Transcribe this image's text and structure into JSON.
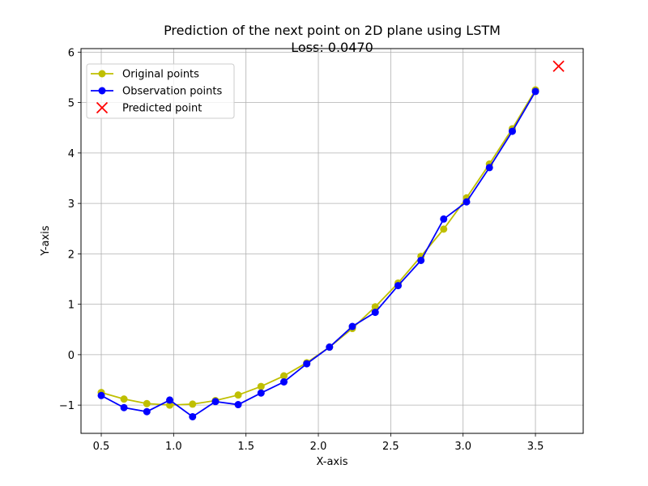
{
  "chart_data": {
    "type": "line",
    "title": "Prediction of the next point on 2D plane using LSTM",
    "subtitle": "Loss: 0.0470",
    "xlabel": "X-axis",
    "ylabel": "Y-axis",
    "xlim": [
      0.36,
      3.83
    ],
    "ylim": [
      -1.56,
      6.07
    ],
    "xticks": [
      0.5,
      1.0,
      1.5,
      2.0,
      2.5,
      3.0,
      3.5
    ],
    "xtick_labels": [
      "0.5",
      "1.0",
      "1.5",
      "2.0",
      "2.5",
      "3.0",
      "3.5"
    ],
    "yticks": [
      -1,
      0,
      1,
      2,
      3,
      4,
      5,
      6
    ],
    "ytick_labels": [
      "−1",
      "0",
      "1",
      "2",
      "3",
      "4",
      "5",
      "6"
    ],
    "grid": true,
    "legend_position": "top-left",
    "x": [
      0.5,
      0.657,
      0.815,
      0.973,
      1.131,
      1.289,
      1.446,
      1.604,
      1.762,
      1.92,
      2.077,
      2.235,
      2.393,
      2.551,
      2.709,
      2.866,
      3.024,
      3.182,
      3.34,
      3.5
    ],
    "series": [
      {
        "name": "Original points",
        "color": "#bfbf00",
        "marker": "circle",
        "values": [
          -0.75,
          -0.88,
          -0.97,
          -1.0,
          -0.98,
          -0.91,
          -0.8,
          -0.63,
          -0.42,
          -0.16,
          0.15,
          0.52,
          0.95,
          1.42,
          1.95,
          2.49,
          3.11,
          3.78,
          4.48,
          5.25
        ]
      },
      {
        "name": "Observation points",
        "color": "#0000ff",
        "marker": "circle",
        "values": [
          -0.81,
          -1.05,
          -1.13,
          -0.9,
          -1.23,
          -0.93,
          -0.99,
          -0.76,
          -0.54,
          -0.18,
          0.15,
          0.56,
          0.84,
          1.37,
          1.87,
          2.69,
          3.03,
          3.71,
          4.43,
          5.22
        ]
      },
      {
        "name": "Predicted point",
        "color": "#ff0000",
        "marker": "x",
        "x": [
          3.66
        ],
        "values": [
          5.72
        ]
      }
    ]
  }
}
